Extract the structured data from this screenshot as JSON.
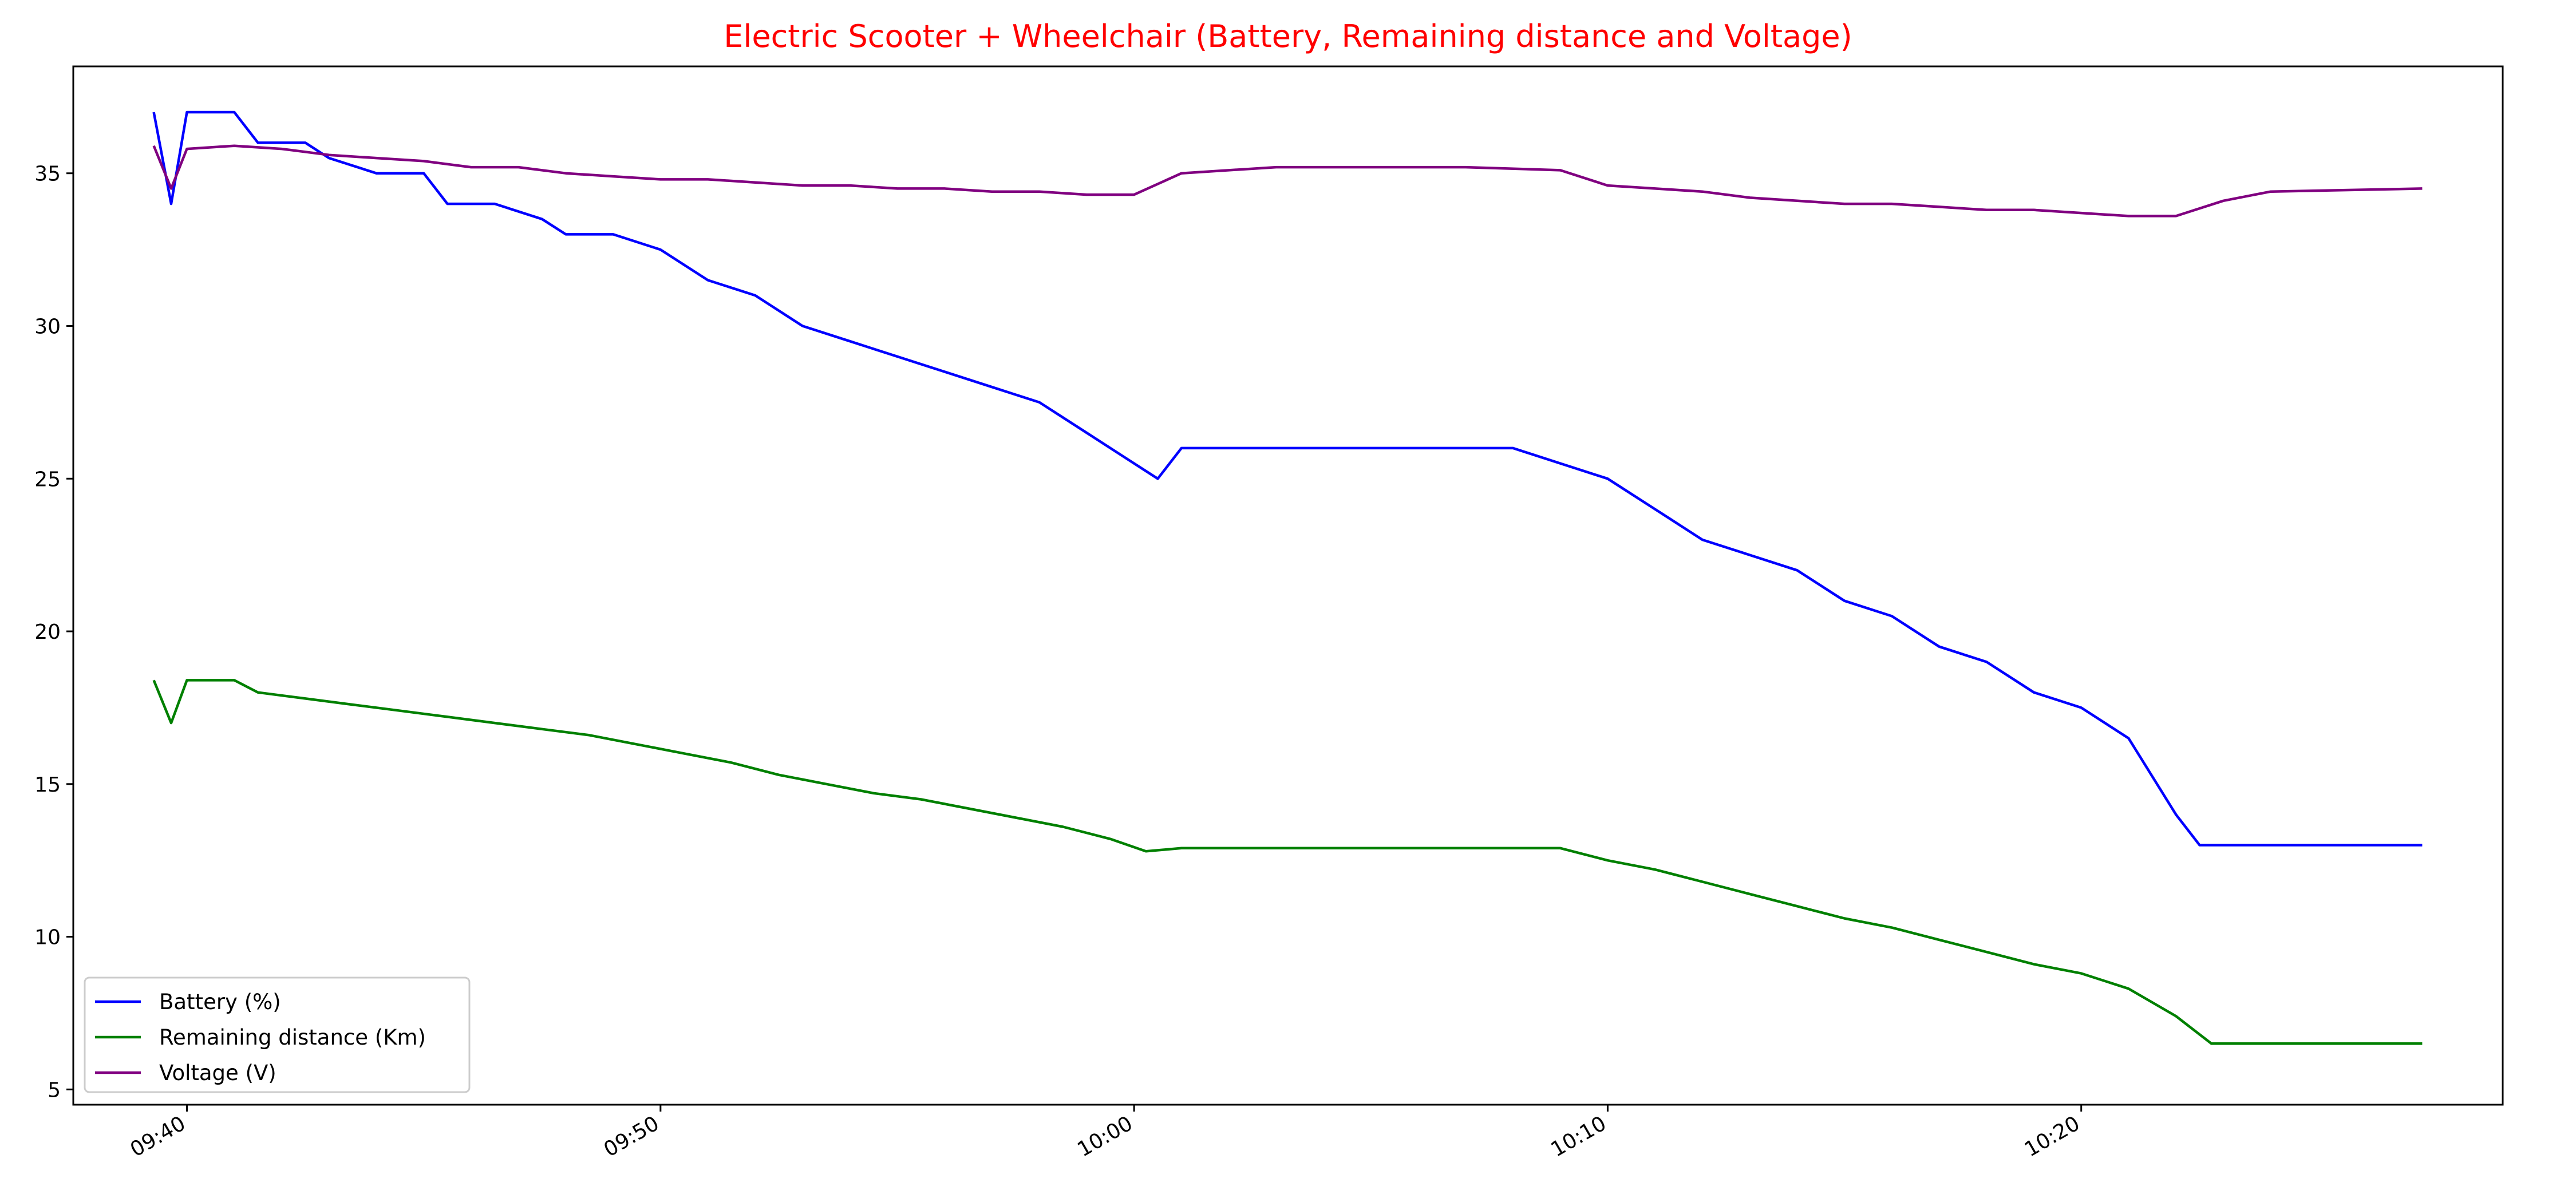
{
  "chart_data": {
    "type": "line",
    "title": "Electric Scooter + Wheelchair (Battery, Remaining distance and Voltage)",
    "title_color": "#ff0000",
    "xlabel": "",
    "ylabel": "",
    "x_axis_type": "time",
    "xlim": [
      "09:37:36",
      "10:28:54"
    ],
    "ylim": [
      4.5,
      38.5
    ],
    "xticks": [
      "09:40",
      "09:50",
      "10:00",
      "10:10",
      "10:20"
    ],
    "yticks": [
      5,
      10,
      15,
      20,
      25,
      30,
      35
    ],
    "grid": false,
    "legend_position": "lower-left",
    "series": [
      {
        "name": "Battery (%)",
        "color": "#0000ff",
        "points": [
          [
            "09:39:18",
            37
          ],
          [
            "09:39:40",
            34
          ],
          [
            "09:40:00",
            37
          ],
          [
            "09:41:00",
            37
          ],
          [
            "09:41:30",
            36
          ],
          [
            "09:42:30",
            36
          ],
          [
            "09:43:00",
            35.5
          ],
          [
            "09:44:00",
            35
          ],
          [
            "09:45:00",
            35
          ],
          [
            "09:45:30",
            34
          ],
          [
            "09:46:30",
            34
          ],
          [
            "09:47:30",
            33.5
          ],
          [
            "09:48:00",
            33
          ],
          [
            "09:49:00",
            33
          ],
          [
            "09:50:00",
            32.5
          ],
          [
            "09:51:00",
            31.5
          ],
          [
            "09:52:00",
            31
          ],
          [
            "09:53:00",
            30
          ],
          [
            "09:54:00",
            29.5
          ],
          [
            "09:55:00",
            29
          ],
          [
            "09:56:00",
            28.5
          ],
          [
            "09:57:00",
            28
          ],
          [
            "09:58:00",
            27.5
          ],
          [
            "09:59:00",
            26.5
          ],
          [
            "10:00:00",
            25.5
          ],
          [
            "10:00:30",
            25
          ],
          [
            "10:01:00",
            26
          ],
          [
            "10:05:00",
            26
          ],
          [
            "10:08:00",
            26
          ],
          [
            "10:09:00",
            25.5
          ],
          [
            "10:10:00",
            25
          ],
          [
            "10:11:00",
            24
          ],
          [
            "10:12:00",
            23
          ],
          [
            "10:13:00",
            22.5
          ],
          [
            "10:14:00",
            22
          ],
          [
            "10:15:00",
            21
          ],
          [
            "10:16:00",
            20.5
          ],
          [
            "10:17:00",
            19.5
          ],
          [
            "10:18:00",
            19
          ],
          [
            "10:19:00",
            18
          ],
          [
            "10:20:00",
            17.5
          ],
          [
            "10:21:00",
            16.5
          ],
          [
            "10:22:00",
            14
          ],
          [
            "10:22:30",
            13
          ],
          [
            "10:23:00",
            13
          ],
          [
            "10:27:12",
            13
          ]
        ]
      },
      {
        "name": "Remaining distance (Km)",
        "color": "#008000",
        "points": [
          [
            "09:39:18",
            18.4
          ],
          [
            "09:39:40",
            17
          ],
          [
            "09:40:00",
            18.4
          ],
          [
            "09:41:00",
            18.4
          ],
          [
            "09:41:30",
            18
          ],
          [
            "09:42:30",
            17.8
          ],
          [
            "09:43:30",
            17.6
          ],
          [
            "09:44:30",
            17.4
          ],
          [
            "09:45:30",
            17.2
          ],
          [
            "09:46:30",
            17
          ],
          [
            "09:47:30",
            16.8
          ],
          [
            "09:48:30",
            16.6
          ],
          [
            "09:49:30",
            16.3
          ],
          [
            "09:50:30",
            16
          ],
          [
            "09:51:30",
            15.7
          ],
          [
            "09:52:30",
            15.3
          ],
          [
            "09:53:30",
            15
          ],
          [
            "09:54:30",
            14.7
          ],
          [
            "09:55:30",
            14.5
          ],
          [
            "09:56:30",
            14.2
          ],
          [
            "09:57:30",
            13.9
          ],
          [
            "09:58:30",
            13.6
          ],
          [
            "09:59:30",
            13.2
          ],
          [
            "10:00:15",
            12.8
          ],
          [
            "10:01:00",
            12.9
          ],
          [
            "10:05:00",
            12.9
          ],
          [
            "10:09:00",
            12.9
          ],
          [
            "10:10:00",
            12.5
          ],
          [
            "10:11:00",
            12.2
          ],
          [
            "10:12:00",
            11.8
          ],
          [
            "10:13:00",
            11.4
          ],
          [
            "10:14:00",
            11
          ],
          [
            "10:15:00",
            10.6
          ],
          [
            "10:16:00",
            10.3
          ],
          [
            "10:17:00",
            9.9
          ],
          [
            "10:18:00",
            9.5
          ],
          [
            "10:19:00",
            9.1
          ],
          [
            "10:20:00",
            8.8
          ],
          [
            "10:21:00",
            8.3
          ],
          [
            "10:22:00",
            7.4
          ],
          [
            "10:22:45",
            6.5
          ],
          [
            "10:23:00",
            6.5
          ],
          [
            "10:27:12",
            6.5
          ]
        ]
      },
      {
        "name": "Voltage (V)",
        "color": "#800080",
        "points": [
          [
            "09:39:18",
            35.9
          ],
          [
            "09:39:40",
            34.5
          ],
          [
            "09:40:00",
            35.8
          ],
          [
            "09:41:00",
            35.9
          ],
          [
            "09:42:00",
            35.8
          ],
          [
            "09:43:00",
            35.6
          ],
          [
            "09:44:00",
            35.5
          ],
          [
            "09:45:00",
            35.4
          ],
          [
            "09:46:00",
            35.2
          ],
          [
            "09:47:00",
            35.2
          ],
          [
            "09:48:00",
            35.0
          ],
          [
            "09:49:00",
            34.9
          ],
          [
            "09:50:00",
            34.8
          ],
          [
            "09:51:00",
            34.8
          ],
          [
            "09:52:00",
            34.7
          ],
          [
            "09:53:00",
            34.6
          ],
          [
            "09:54:00",
            34.6
          ],
          [
            "09:55:00",
            34.5
          ],
          [
            "09:56:00",
            34.5
          ],
          [
            "09:57:00",
            34.4
          ],
          [
            "09:58:00",
            34.4
          ],
          [
            "09:59:00",
            34.3
          ],
          [
            "10:00:00",
            34.3
          ],
          [
            "10:01:00",
            35.0
          ],
          [
            "10:03:00",
            35.2
          ],
          [
            "10:05:00",
            35.2
          ],
          [
            "10:07:00",
            35.2
          ],
          [
            "10:09:00",
            35.1
          ],
          [
            "10:10:00",
            34.6
          ],
          [
            "10:11:00",
            34.5
          ],
          [
            "10:12:00",
            34.4
          ],
          [
            "10:13:00",
            34.2
          ],
          [
            "10:14:00",
            34.1
          ],
          [
            "10:15:00",
            34.0
          ],
          [
            "10:16:00",
            34.0
          ],
          [
            "10:17:00",
            33.9
          ],
          [
            "10:18:00",
            33.8
          ],
          [
            "10:19:00",
            33.8
          ],
          [
            "10:20:00",
            33.7
          ],
          [
            "10:21:00",
            33.6
          ],
          [
            "10:22:00",
            33.6
          ],
          [
            "10:23:00",
            34.1
          ],
          [
            "10:24:00",
            34.4
          ],
          [
            "10:27:12",
            34.5
          ]
        ]
      }
    ]
  }
}
